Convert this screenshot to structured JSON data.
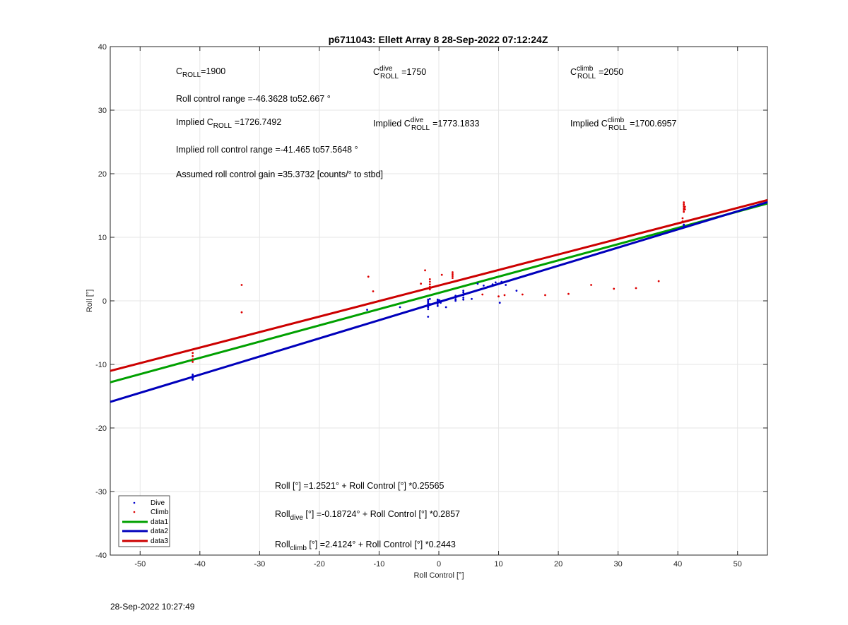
{
  "chart_data": {
    "type": "scatter",
    "title": "p6711043: Ellett Array 8 28-Sep-2022 07:12:24Z",
    "xlabel": "Roll Control [°]",
    "ylabel": "Roll [°]",
    "xlim": [
      -55,
      55
    ],
    "ylim": [
      -40,
      40
    ],
    "xticks": [
      -50,
      -40,
      -30,
      -20,
      -10,
      0,
      10,
      20,
      30,
      40,
      50
    ],
    "yticks": [
      -40,
      -30,
      -20,
      -10,
      0,
      10,
      20,
      30,
      40
    ],
    "grid": true,
    "legend_position": "bottom-left",
    "colors": {
      "dive": "#0000cc",
      "climb": "#dd0000",
      "data1": "#00a000",
      "data2": "#0000bb",
      "data3": "#cc0000"
    },
    "annotations": {
      "c_roll": {
        "base": "C",
        "sub": "ROLL",
        "sup": "",
        "value": "=1900"
      },
      "c_roll_dive": {
        "base": "C",
        "sub": "ROLL",
        "sup": "dive",
        "value": "=1750"
      },
      "c_roll_climb": {
        "base": "C",
        "sub": "ROLL",
        "sup": "climb",
        "value": "=2050"
      },
      "roll_control_range": "Roll control range =-46.3628 to52.667 °",
      "implied_c_roll": {
        "prefix": "Implied C",
        "sub": "ROLL",
        "sup": "",
        "value": "=1726.7492"
      },
      "implied_c_roll_dive": {
        "prefix": "Implied C",
        "sub": "ROLL",
        "sup": "dive",
        "value": "=1773.1833"
      },
      "implied_c_roll_climb": {
        "prefix": "Implied C",
        "sub": "ROLL",
        "sup": "climb",
        "value": "=1700.6957"
      },
      "implied_range": "Implied roll control range =-41.465 to57.5648 °",
      "gain": "Assumed roll control gain =35.3732 [counts/° to stbd]",
      "fit_all": "Roll [°] =1.2521° + Roll Control [°] *0.25565",
      "fit_dive": {
        "base": "Roll",
        "sub": "dive",
        "rest": " [°] =-0.18724° + Roll Control [°] *0.2857"
      },
      "fit_climb": {
        "base": "Roll",
        "sub": "climb",
        "rest": " [°] =2.4124° + Roll Control [°] *0.2443"
      }
    },
    "legend": [
      "Dive",
      "Climb",
      "data1",
      "data2",
      "data3"
    ],
    "lines": [
      {
        "name": "data1",
        "intercept": 1.2521,
        "slope": 0.25565
      },
      {
        "name": "data2",
        "intercept": -0.18724,
        "slope": 0.2857
      },
      {
        "name": "data3",
        "intercept": 2.4124,
        "slope": 0.2443
      }
    ],
    "series": [
      {
        "name": "Dive",
        "points": [
          [
            -41.2,
            -11.8
          ],
          [
            -41.2,
            -12.0
          ],
          [
            -41.2,
            -12.2
          ],
          [
            -41.2,
            -12.4
          ],
          [
            -41.2,
            -11.6
          ],
          [
            -12,
            -1.4
          ],
          [
            -6.5,
            -1.0
          ],
          [
            -1.8,
            -2.5
          ],
          [
            -1.8,
            -1.3
          ],
          [
            -1.8,
            -1.0
          ],
          [
            -1.8,
            -0.8
          ],
          [
            -1.8,
            -0.6
          ],
          [
            -1.8,
            -0.4
          ],
          [
            -1.8,
            -0.2
          ],
          [
            -1.8,
            0.0
          ],
          [
            -1.8,
            0.2
          ],
          [
            -1.5,
            -0.5
          ],
          [
            -1.5,
            0.3
          ],
          [
            -0.2,
            -0.5
          ],
          [
            -0.2,
            -0.2
          ],
          [
            -0.2,
            0.0
          ],
          [
            -0.2,
            0.2
          ],
          [
            -0.2,
            -0.8
          ],
          [
            0.1,
            0.1
          ],
          [
            0.3,
            -0.3
          ],
          [
            1.2,
            -1.0
          ],
          [
            2.8,
            0.2
          ],
          [
            2.8,
            0.5
          ],
          [
            2.8,
            0.8
          ],
          [
            2.8,
            0.0
          ],
          [
            4.1,
            0.5
          ],
          [
            4.1,
            0.9
          ],
          [
            4.1,
            1.3
          ],
          [
            4.1,
            1.6
          ],
          [
            4.1,
            0.2
          ],
          [
            5.5,
            0.3
          ],
          [
            6.5,
            2.7
          ],
          [
            7.5,
            2.4
          ],
          [
            8.2,
            2.2
          ],
          [
            9,
            2.6
          ],
          [
            9.5,
            2.9
          ],
          [
            10,
            2.7
          ],
          [
            10.5,
            3.0
          ],
          [
            11.2,
            2.5
          ],
          [
            10.2,
            -0.3
          ],
          [
            13,
            1.6
          ],
          [
            41,
            11.6
          ],
          [
            41,
            11.8
          ],
          [
            41,
            12.0
          ]
        ]
      },
      {
        "name": "Climb",
        "points": [
          [
            -41.2,
            -8.2
          ],
          [
            -41.2,
            -8.7
          ],
          [
            -41.2,
            -9.2
          ],
          [
            -41.2,
            -9.6
          ],
          [
            -33,
            2.5
          ],
          [
            -33,
            -1.8
          ],
          [
            -11.8,
            3.8
          ],
          [
            -11,
            1.5
          ],
          [
            -3,
            2.7
          ],
          [
            -2.3,
            4.8
          ],
          [
            -1.5,
            1.8
          ],
          [
            -1.5,
            2.2
          ],
          [
            -1.5,
            2.6
          ],
          [
            -1.5,
            3.0
          ],
          [
            -1.5,
            3.4
          ],
          [
            0.5,
            4.1
          ],
          [
            2.3,
            3.6
          ],
          [
            2.3,
            3.9
          ],
          [
            2.3,
            4.2
          ],
          [
            2.3,
            4.5
          ],
          [
            7.3,
            1.0
          ],
          [
            10,
            0.7
          ],
          [
            11,
            0.9
          ],
          [
            14,
            1.0
          ],
          [
            17.8,
            0.9
          ],
          [
            21.7,
            1.1
          ],
          [
            25.5,
            2.5
          ],
          [
            29.3,
            1.9
          ],
          [
            33,
            2.0
          ],
          [
            36.8,
            3.1
          ],
          [
            40.8,
            12.5
          ],
          [
            40.8,
            13.0
          ],
          [
            41,
            14.0
          ],
          [
            41,
            14.3
          ],
          [
            41,
            14.6
          ],
          [
            41,
            14.9
          ],
          [
            41,
            15.2
          ],
          [
            41,
            15.5
          ],
          [
            41.2,
            14.4
          ],
          [
            41.2,
            14.8
          ]
        ]
      }
    ]
  },
  "timestamp": "28-Sep-2022 10:27:49"
}
